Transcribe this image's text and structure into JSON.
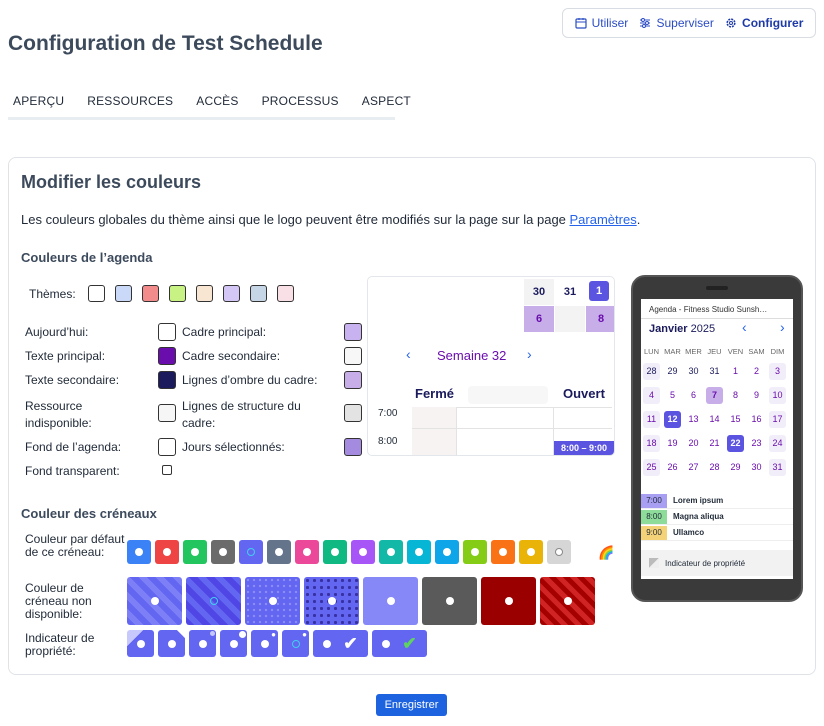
{
  "nav": {
    "utiliser": "Utiliser",
    "superviser": "Superviser",
    "configurer": "Configurer"
  },
  "page_title": "Configuration de Test Schedule",
  "tabs": [
    "APERÇU",
    "RESSOURCES",
    "ACCÈS",
    "PROCESSUS",
    "ASPECT"
  ],
  "card": {
    "title": "Modifier les couleurs",
    "desc": "Les couleurs globales du thème ainsi que le logo peuvent être modifiés sur la page sur la page ",
    "desc_link": "Paramètres",
    "desc_end": ".",
    "agenda_section": "Couleurs de l’agenda",
    "themes_label": "Thèmes:",
    "theme_colors": [
      "#ffffff",
      "#c9d9f7",
      "#f28c8c",
      "#c8f283",
      "#f8e6d2",
      "#d4c6f5",
      "#c6d6e6",
      "#f9e0e6"
    ],
    "left_fields": [
      {
        "label": "Aujourd’hui:",
        "color": "#ffffff"
      },
      {
        "label": "Texte principal:",
        "color": "#6a0dad"
      },
      {
        "label": "Texte secondaire:",
        "color": "#1a1a5c"
      },
      {
        "label": "Ressource indisponible:",
        "color": "#f6f6f6"
      },
      {
        "label": "Fond de l’agenda:",
        "color": "#ffffff"
      }
    ],
    "transparent_label": "Fond transparent:",
    "right_fields": [
      {
        "label": "Cadre principal:",
        "color": "#c9b2f0"
      },
      {
        "label": "Cadre secondaire:",
        "color": "#f7f7f7"
      },
      {
        "label": "Lignes d’ombre du cadre:",
        "color": "#c7aee8"
      },
      {
        "label": "Lignes de structure du cadre:",
        "color": "#e3e3e3"
      },
      {
        "label": "Jours sélectionnés:",
        "color": "#a48be0"
      }
    ],
    "preview": {
      "days": [
        "30",
        "31",
        "1",
        "6",
        "",
        "8"
      ],
      "week": "Semaine 32",
      "col_closed": "Fermé",
      "col_open": "Ouvert",
      "times": [
        "7:00",
        "8:00"
      ],
      "slot": "8:00 – 9:00"
    },
    "phone": {
      "header": "Agenda - Fitness Studio Sunsh…",
      "month": "Janvier",
      "year": "2025",
      "weekdays": [
        "LUN",
        "MAR",
        "MER",
        "JEU",
        "VEN",
        "SAM",
        "DIM"
      ],
      "weeks": [
        [
          "28",
          "29",
          "30",
          "31",
          "1",
          "2",
          "3"
        ],
        [
          "4",
          "5",
          "6",
          "7",
          "8",
          "9",
          "10"
        ],
        [
          "11",
          "12",
          "13",
          "14",
          "15",
          "16",
          "17"
        ],
        [
          "18",
          "19",
          "20",
          "21",
          "22",
          "23",
          "24"
        ],
        [
          "25",
          "26",
          "27",
          "28",
          "29",
          "30",
          "31"
        ]
      ],
      "events": [
        {
          "time": "7:00",
          "title": "Lorem ipsum",
          "color": "#a89ef2"
        },
        {
          "time": "8:00",
          "title": "Magna aliqua",
          "color": "#8edc9a"
        },
        {
          "time": "9:00",
          "title": "Ullamco",
          "color": "#f4d277"
        }
      ],
      "footer": "Indicateur de propriété"
    },
    "slots_section": "Couleur des créneaux",
    "default_slot_label": "Couleur par défaut de ce créneau:",
    "default_slot_colors": [
      "#3b82f6",
      "#ef4444",
      "#22c55e",
      "#6b6b6b",
      "#6366f1",
      "#64748b",
      "#ec4899",
      "#10b981",
      "#a855f7",
      "#14b8a6",
      "#06b6d4",
      "#0ea5e9",
      "#84cc16",
      "#f97316",
      "#eab308",
      "#d6d6d6"
    ],
    "unavail_label": "Couleur de créneau non disponible:",
    "owner_label": "Indicateur de propriété:",
    "save": "Enregistrer"
  }
}
